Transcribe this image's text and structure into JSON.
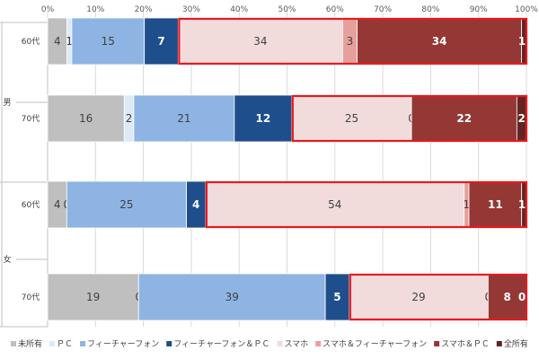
{
  "chart_data": {
    "type": "bar",
    "orientation": "horizontal",
    "stacked": true,
    "normalized_percent": true,
    "xlim": [
      0,
      100
    ],
    "x_ticks": [
      "0%",
      "10%",
      "20%",
      "30%",
      "40%",
      "50%",
      "60%",
      "70%",
      "80%",
      "90%",
      "100%"
    ],
    "groups": [
      {
        "label": "男",
        "categories": [
          "60代",
          "70代"
        ]
      },
      {
        "label": "女",
        "categories": [
          "60代",
          "70代"
        ]
      }
    ],
    "rows": [
      {
        "group": "男",
        "category": "60代",
        "values": [
          4,
          1,
          15,
          7,
          34,
          3,
          34,
          1
        ],
        "highlight_from_series": 4
      },
      {
        "group": "男",
        "category": "70代",
        "values": [
          16,
          2,
          21,
          12,
          25,
          0,
          22,
          2
        ],
        "highlight_from_series": 4
      },
      {
        "group": "女",
        "category": "60代",
        "values": [
          4,
          0,
          25,
          4,
          54,
          1,
          11,
          1
        ],
        "highlight_from_series": 4
      },
      {
        "group": "女",
        "category": "70代",
        "values": [
          19,
          0,
          39,
          5,
          29,
          0,
          8,
          0
        ],
        "highlight_from_series": 4
      }
    ],
    "series": [
      {
        "name": "未所有",
        "color": "#bfbfbf",
        "label_color": "#404040",
        "bold": false
      },
      {
        "name": "ＰＣ",
        "color": "#dde9f6",
        "label_color": "#404040",
        "bold": false
      },
      {
        "name": "フィーチャーフォン",
        "color": "#8eb4e3",
        "label_color": "#404040",
        "bold": false
      },
      {
        "name": "フィーチャーフォン＆ＰＣ",
        "color": "#1f4e8c",
        "label_color": "#ffffff",
        "bold": true
      },
      {
        "name": "スマホ",
        "color": "#f2dcdb",
        "label_color": "#404040",
        "bold": false
      },
      {
        "name": "スマホ＆フィーチャーフォン",
        "color": "#e6a09c",
        "label_color": "#404040",
        "bold": false
      },
      {
        "name": "スマホ＆ＰＣ",
        "color": "#953735",
        "label_color": "#ffffff",
        "bold": true
      },
      {
        "name": "全所有",
        "color": "#632523",
        "label_color": "#ffffff",
        "bold": true
      }
    ],
    "highlight_color": "#e8191f",
    "legend_position": "bottom"
  }
}
